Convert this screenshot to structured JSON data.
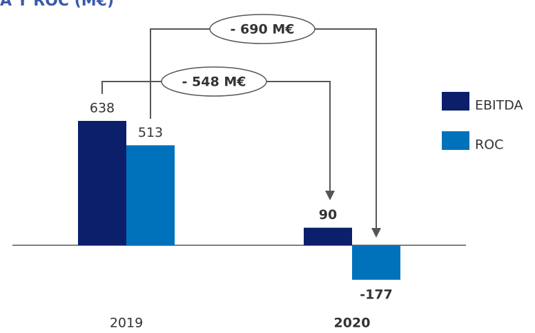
{
  "chart_data": {
    "type": "bar",
    "title": "A Y ROC (M€)",
    "categories": [
      "2019",
      "2020"
    ],
    "series": [
      {
        "name": "EBITDA",
        "color": "#0b1f6b",
        "values": [
          638,
          90
        ]
      },
      {
        "name": "ROC",
        "color": "#0072bc",
        "values": [
          513,
          -177
        ]
      }
    ],
    "annotations": [
      "- 548 M€",
      "- 690 M€"
    ]
  }
}
